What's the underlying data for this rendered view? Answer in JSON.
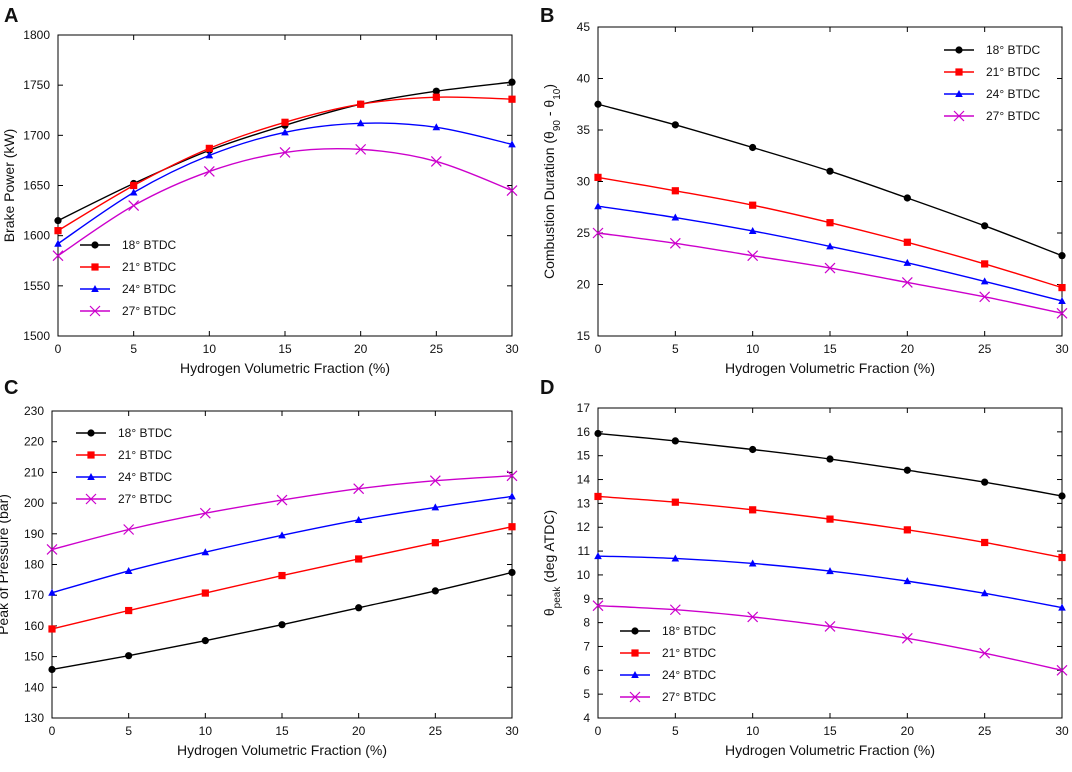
{
  "figure": {
    "panel_letters": [
      "A",
      "B",
      "C",
      "D"
    ]
  },
  "chart_data": [
    {
      "panel": "A",
      "type": "line",
      "xlabel": "Hydrogen Volumetric Fraction (%)",
      "ylabel": "Brake Power (kW)",
      "x": [
        0,
        5,
        10,
        15,
        20,
        25,
        30
      ],
      "xlim": [
        0,
        30
      ],
      "ylim": [
        1500,
        1800
      ],
      "xticks": [
        0,
        5,
        10,
        15,
        20,
        25,
        30
      ],
      "yticks": [
        1500,
        1550,
        1600,
        1650,
        1700,
        1750,
        1800
      ],
      "legend_position": "bottom-left",
      "series": [
        {
          "name": "18° BTDC",
          "color": "#000000",
          "marker": "circle",
          "values": [
            1615,
            1652,
            1685,
            1710,
            1731,
            1744,
            1753
          ]
        },
        {
          "name": "21° BTDC",
          "color": "#ff0000",
          "marker": "square",
          "values": [
            1605,
            1650,
            1687,
            1713,
            1731,
            1738,
            1736
          ]
        },
        {
          "name": "24° BTDC",
          "color": "#0000ff",
          "marker": "triangle",
          "values": [
            1592,
            1643,
            1680,
            1703,
            1712,
            1708,
            1691
          ]
        },
        {
          "name": "27° BTDC",
          "color": "#cc00cc",
          "marker": "x",
          "values": [
            1580,
            1630,
            1664,
            1683,
            1686,
            1674,
            1645
          ]
        }
      ]
    },
    {
      "panel": "B",
      "type": "line",
      "xlabel": "Hydrogen Volumetric Fraction (%)",
      "ylabel": "Combustion Duration (θ",
      "ylabel_parts": [
        "Combustion Duration (θ",
        "90",
        " - θ",
        "10",
        ")"
      ],
      "x": [
        0,
        5,
        10,
        15,
        20,
        25,
        30
      ],
      "xlim": [
        0,
        30
      ],
      "ylim": [
        15,
        45
      ],
      "xticks": [
        0,
        5,
        10,
        15,
        20,
        25,
        30
      ],
      "yticks": [
        15,
        20,
        25,
        30,
        35,
        40,
        45
      ],
      "legend_position": "top-right",
      "series": [
        {
          "name": "18° BTDC",
          "color": "#000000",
          "marker": "circle",
          "values": [
            37.5,
            35.5,
            33.3,
            31.0,
            28.4,
            25.7,
            22.8
          ]
        },
        {
          "name": "21° BTDC",
          "color": "#ff0000",
          "marker": "square",
          "values": [
            30.4,
            29.1,
            27.7,
            26.0,
            24.1,
            22.0,
            19.7
          ]
        },
        {
          "name": "24° BTDC",
          "color": "#0000ff",
          "marker": "triangle",
          "values": [
            27.6,
            26.5,
            25.2,
            23.7,
            22.1,
            20.3,
            18.4
          ]
        },
        {
          "name": "27° BTDC",
          "color": "#cc00cc",
          "marker": "x",
          "values": [
            25.0,
            24.0,
            22.8,
            21.6,
            20.2,
            18.8,
            17.2
          ]
        }
      ]
    },
    {
      "panel": "C",
      "type": "line",
      "xlabel": "Hydrogen Volumetric Fraction (%)",
      "ylabel": "Peak of Pressure (bar)",
      "x": [
        0,
        5,
        10,
        15,
        20,
        25,
        30
      ],
      "xlim": [
        0,
        30
      ],
      "ylim": [
        130,
        230
      ],
      "xticks": [
        0,
        5,
        10,
        15,
        20,
        25,
        30
      ],
      "yticks": [
        130,
        140,
        150,
        160,
        170,
        180,
        190,
        200,
        210,
        220,
        230
      ],
      "legend_position": "top-left",
      "series": [
        {
          "name": "18° BTDC",
          "color": "#000000",
          "marker": "circle",
          "values": [
            145.8,
            150.3,
            155.2,
            160.4,
            165.9,
            171.4,
            177.4
          ]
        },
        {
          "name": "21° BTDC",
          "color": "#ff0000",
          "marker": "square",
          "values": [
            159.0,
            165.0,
            170.7,
            176.4,
            181.8,
            187.1,
            192.3
          ]
        },
        {
          "name": "24° BTDC",
          "color": "#0000ff",
          "marker": "triangle",
          "values": [
            170.8,
            177.9,
            184.0,
            189.5,
            194.5,
            198.6,
            202.2
          ]
        },
        {
          "name": "27° BTDC",
          "color": "#cc00cc",
          "marker": "x",
          "values": [
            184.9,
            191.4,
            196.7,
            201.0,
            204.7,
            207.3,
            208.9
          ]
        }
      ]
    },
    {
      "panel": "D",
      "type": "line",
      "xlabel": "Hydrogen Volumetric Fraction (%)",
      "ylabel": "θ",
      "ylabel_parts": [
        "θ",
        "peak",
        " (deg ATDC)"
      ],
      "x": [
        0,
        5,
        10,
        15,
        20,
        25,
        30
      ],
      "xlim": [
        0,
        30
      ],
      "ylim": [
        4,
        17
      ],
      "xticks": [
        0,
        5,
        10,
        15,
        20,
        25,
        30
      ],
      "yticks": [
        4,
        5,
        6,
        7,
        8,
        9,
        10,
        11,
        12,
        13,
        14,
        15,
        16,
        17
      ],
      "legend_position": "bottom-left",
      "series": [
        {
          "name": "18° BTDC",
          "color": "#000000",
          "marker": "circle",
          "values": [
            15.93,
            15.62,
            15.26,
            14.86,
            14.39,
            13.89,
            13.31
          ]
        },
        {
          "name": "21° BTDC",
          "color": "#ff0000",
          "marker": "square",
          "values": [
            13.29,
            13.05,
            12.73,
            12.34,
            11.89,
            11.36,
            10.73
          ]
        },
        {
          "name": "24° BTDC",
          "color": "#0000ff",
          "marker": "triangle",
          "values": [
            10.79,
            10.69,
            10.48,
            10.16,
            9.74,
            9.23,
            8.63
          ]
        },
        {
          "name": "27° BTDC",
          "color": "#cc00cc",
          "marker": "x",
          "values": [
            8.71,
            8.54,
            8.24,
            7.84,
            7.34,
            6.72,
            6.0
          ]
        }
      ]
    }
  ]
}
